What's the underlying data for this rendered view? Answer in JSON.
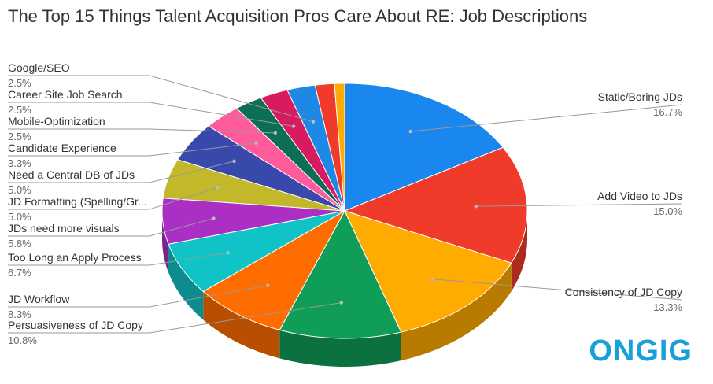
{
  "chart_data": {
    "type": "pie3d",
    "title": "The Top 15 Things Talent Acquisition Pros Care About RE: Job Descriptions",
    "categories": [
      "Static/Boring JDs",
      "Add Video to JDs",
      "Consistency of JD Copy",
      "Persuasiveness of JD Copy",
      "JD Workflow",
      "Too Long an Apply Process",
      "JDs need more visuals",
      "JD Formatting (Spelling/Gr...",
      "Need a Central DB of JDs",
      "Candidate Experience",
      "Mobile-Optimization",
      "Career Site Job Search",
      "Google/SEO",
      null,
      null
    ],
    "values": [
      16.7,
      15.0,
      13.3,
      10.8,
      8.3,
      6.7,
      5.8,
      5.0,
      5.0,
      3.3,
      2.5,
      2.5,
      2.5,
      1.7,
      0.9
    ],
    "value_labels": [
      "16.7%",
      "15.0%",
      "13.3%",
      "10.8%",
      "8.3%",
      "6.7%",
      "5.8%",
      "5.0%",
      "5.0%",
      "3.3%",
      "2.5%",
      "2.5%",
      "2.5%",
      null,
      null
    ],
    "colors": [
      "#1a87ef",
      "#f03a2a",
      "#ffab00",
      "#0f9d58",
      "#ff6d00",
      "#10c3c6",
      "#ab2fc4",
      "#c3b829",
      "#3949ab",
      "#ff5b9c",
      "#0b6e55",
      "#d81b60",
      "#1e88e5",
      "#f03a2a",
      "#ffab00"
    ]
  },
  "logo": "ONGIG"
}
